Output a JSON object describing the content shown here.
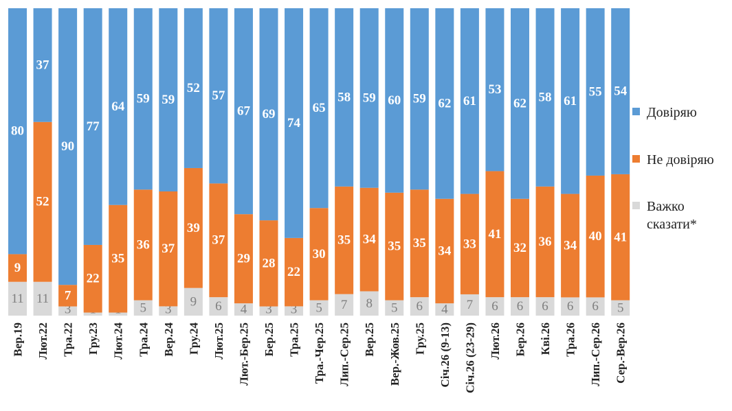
{
  "chart_data": {
    "type": "bar",
    "stacked": true,
    "percent_stacked": true,
    "categories": [
      "Вер.19",
      "Лют.22",
      "Тра.22",
      "Гру.23",
      "Лют.24",
      "Тра.24",
      "Вер.24",
      "Гру.24",
      "Лют.25",
      "Лют.-Бер.25",
      "Бер.25",
      "Тра.25",
      "Тра.-Чер.25",
      "Лип.-Сер.25",
      "Вер.25",
      "Вер.-Жов.25",
      "Гру.25",
      "Січ.26 (9-13)",
      "Січ.26 (23-29)",
      "Лют.26",
      "Бер.26",
      "Кві.26",
      "Тра.26",
      "Лип.-Сер.26",
      "Сер.-Вер.26"
    ],
    "series": [
      {
        "name": "Важко сказати*",
        "color": "#d9d9d9",
        "label_color": "#7f7f7f",
        "values": [
          11,
          11,
          3,
          1,
          1,
          5,
          3,
          9,
          6,
          4,
          3,
          3,
          5,
          7,
          8,
          5,
          6,
          4,
          7,
          6,
          6,
          6,
          6,
          6,
          5
        ]
      },
      {
        "name": "Не довіряю",
        "color": "#ed7d31",
        "label_color": "#ffffff",
        "values": [
          9,
          52,
          7,
          22,
          35,
          36,
          37,
          39,
          37,
          29,
          28,
          22,
          30,
          35,
          34,
          35,
          35,
          34,
          33,
          41,
          32,
          36,
          34,
          40,
          41
        ]
      },
      {
        "name": "Довіряю",
        "color": "#5b9bd5",
        "label_color": "#ffffff",
        "values": [
          80,
          37,
          90,
          77,
          64,
          59,
          59,
          52,
          57,
          67,
          69,
          74,
          65,
          58,
          59,
          60,
          59,
          62,
          61,
          53,
          62,
          58,
          61,
          55,
          54
        ]
      }
    ],
    "ylim": [
      0,
      100
    ],
    "grid": false,
    "legend": {
      "position": "right",
      "order": [
        "Довіряю",
        "Не довіряю",
        "Важко сказати*"
      ]
    }
  }
}
